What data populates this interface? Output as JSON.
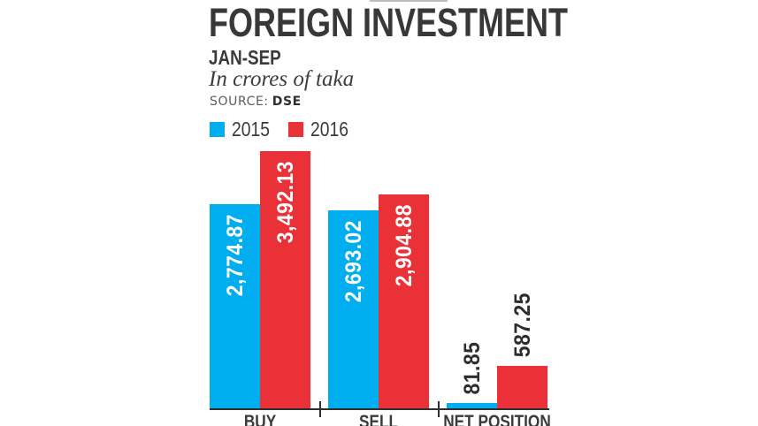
{
  "header": {
    "title": "FOREIGN INVESTMENT",
    "period": "JAN-SEP",
    "unit_note": "In crores of taka",
    "source_label": "SOURCE:",
    "source_value": "DSE"
  },
  "chart_data": {
    "type": "bar",
    "title": "FOREIGN INVESTMENT",
    "subtitle": "JAN-SEP",
    "unit": "crores of taka",
    "source": "DSE",
    "categories": [
      "BUY",
      "SELL",
      "NET POSITION"
    ],
    "series": [
      {
        "name": "2015",
        "color": "#00AEEF",
        "values": [
          2774.87,
          2693.02,
          81.85
        ],
        "labels": [
          "2,774.87",
          "2,693.02",
          "81.85"
        ]
      },
      {
        "name": "2016",
        "color": "#EB3138",
        "values": [
          3492.13,
          2904.88,
          587.25
        ],
        "labels": [
          "3,492.13",
          "2,904.88",
          "587.25"
        ]
      }
    ],
    "ylim": [
      0,
      3500
    ],
    "grid": false,
    "axes_shown": "x-only",
    "legend_position": "top-left",
    "value_label_placement": "inside-top-rotated; outside-above-rotated for short bars",
    "value_label_color_inside": "#ffffff",
    "value_label_color_outside": "#2d2d2d",
    "axis_color": "#2e2e2e"
  }
}
